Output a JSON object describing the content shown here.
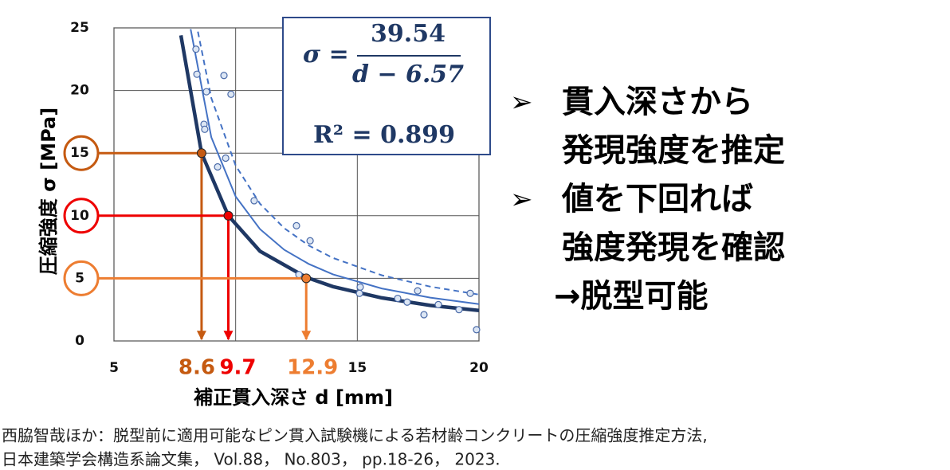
{
  "chart_data": {
    "type": "scatter",
    "y_label": "圧縮強度 σ [MPa]",
    "x_label": "補正貫入深さ d [mm]",
    "xlim": [
      5,
      20
    ],
    "xticks": [
      5,
      15,
      20
    ],
    "xgrid": [
      5,
      10,
      15,
      20
    ],
    "ylim": [
      0,
      25
    ],
    "yticks": [
      0,
      5,
      10,
      15,
      20,
      25
    ],
    "grid": true,
    "points": {
      "color": "#4a6aa8",
      "fill": "#dce6f4",
      "x": [
        8.37,
        8.41,
        9.52,
        8.8,
        9.81,
        8.7,
        8.73,
        9.59,
        9.26,
        10.76,
        12.5,
        13.06,
        12.6,
        15.12,
        15.09,
        16.66,
        17.05,
        17.48,
        17.74,
        18.33,
        19.18,
        19.64,
        19.9
      ],
      "y": [
        23.3,
        21.3,
        21.2,
        19.9,
        19.7,
        17.3,
        16.9,
        14.6,
        13.9,
        11.2,
        9.2,
        8.0,
        5.3,
        4.3,
        3.8,
        3.4,
        3.1,
        4.0,
        2.1,
        2.9,
        2.5,
        3.8,
        0.9
      ]
    },
    "curves": [
      {
        "color": "#1f3864",
        "width": 4.5,
        "dashed": false,
        "x": [
          7.75,
          8.6,
          9.7,
          11,
          12.9,
          14,
          16,
          18,
          20
        ],
        "y": [
          24.4,
          15,
          10,
          7.17,
          5.08,
          4.34,
          3.44,
          2.84,
          2.43
        ]
      },
      {
        "color": "#4472c4",
        "width": 2,
        "dashed": false,
        "x": [
          8.15,
          9,
          10,
          11,
          12,
          13,
          14,
          16,
          18,
          20
        ],
        "y": [
          24.9,
          16.27,
          11.53,
          8.93,
          7.28,
          6.15,
          5.32,
          4.19,
          3.46,
          2.94
        ]
      },
      {
        "color": "#4472c4",
        "width": 2,
        "dashed": true,
        "x": [
          8.45,
          9,
          10,
          11,
          12,
          13,
          14,
          16,
          18,
          20
        ],
        "y": [
          24.7,
          19.4,
          14.0,
          10.96,
          9.0,
          7.63,
          6.63,
          5.25,
          4.34,
          3.7
        ]
      }
    ],
    "guides": [
      {
        "x": 8.6,
        "y": 15,
        "color": "#c55a11"
      },
      {
        "x": 9.7,
        "y": 10,
        "color": "#ee0000"
      },
      {
        "x": 12.9,
        "y": 5,
        "color": "#ed7d31"
      }
    ],
    "equation": {
      "lhs": "σ =",
      "numerator": "39.54",
      "denominator": "d − 6.57",
      "r2": "R² = 0.899"
    }
  },
  "bullets": {
    "marker": "➢",
    "items": [
      {
        "lines": [
          "貫入深さから",
          "発現強度を推定"
        ]
      },
      {
        "lines": [
          "値を下回れば",
          "強度発現を確認",
          "→脱型可能"
        ]
      }
    ]
  },
  "caption": [
    "西脇智哉ほか：脱型前に適用可能なピン貫入試験機による若材齢コンクリートの圧縮強度推定方法,",
    "日本建築学会構造系論文集， Vol.88， No.803， pp.18-26， 2023."
  ]
}
